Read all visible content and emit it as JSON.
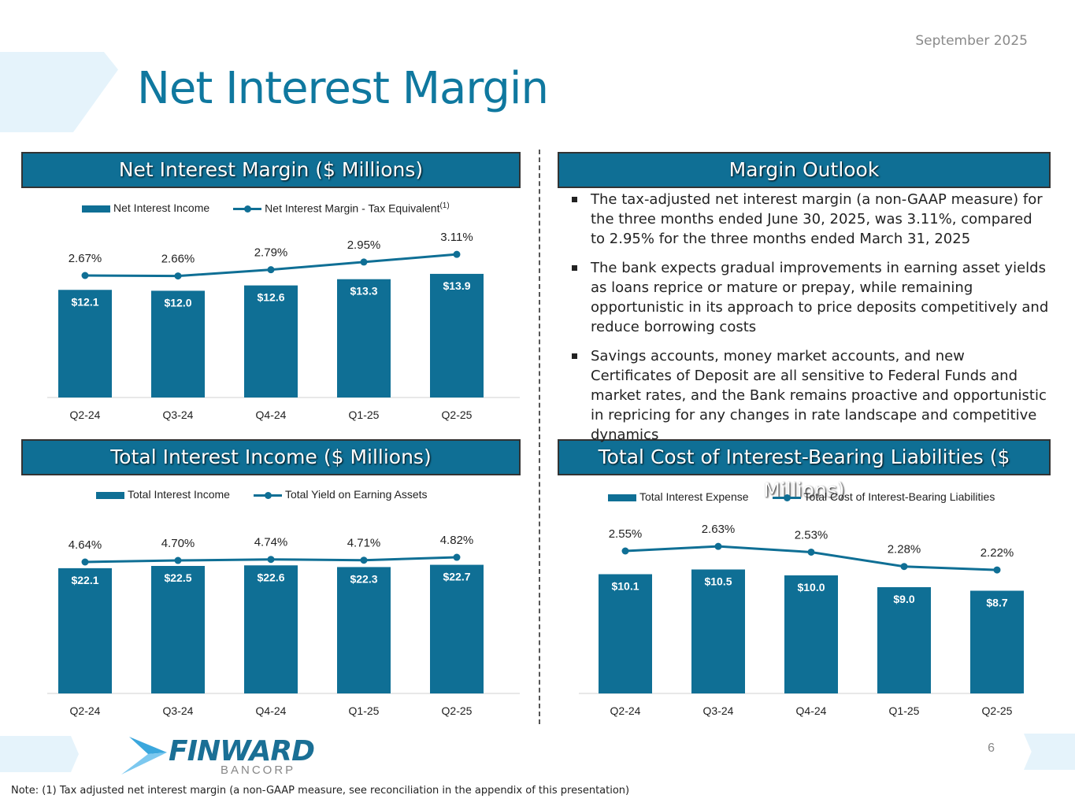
{
  "header": {
    "title": "Net Interest Margin",
    "date": "September 2025"
  },
  "panels": {
    "nim_title": "Net Interest Margin ($ Millions)",
    "outlook_title": "Margin Outlook",
    "tii_title": "Total Interest Income ($ Millions)",
    "cost_title": "Total Cost of Interest-Bearing Liabilities ($ Millions)"
  },
  "outlook": {
    "bullets": [
      "The tax-adjusted net interest margin (a non-GAAP measure) for the three months ended June 30, 2025, was 3.11%, compared to 2.95% for the three months ended March 31, 2025",
      "The bank expects gradual improvements in earning asset yields as loans reprice or mature or prepay, while remaining opportunistic in its approach to price deposits competitively and reduce borrowing costs",
      "Savings accounts, money market accounts, and new Certificates of Deposit are all sensitive to Federal Funds and market rates, and the Bank remains proactive and opportunistic in repricing for any changes in rate landscape and competitive dynamics"
    ]
  },
  "colors": {
    "brand": "#0f6f95",
    "title": "#0f789f",
    "chevron": "#e5f3fb"
  },
  "logo": {
    "name": "FINWARD",
    "sub": "BANCORP"
  },
  "footer": {
    "note": "Note:  (1) Tax adjusted net interest margin (a non-GAAP measure, see reconciliation in the appendix of this presentation)",
    "page": "6"
  },
  "chart_data": [
    {
      "type": "bar+line",
      "categories": [
        "Q2-24",
        "Q3-24",
        "Q4-24",
        "Q1-25",
        "Q2-25"
      ],
      "bar_series": {
        "name": "Net Interest Income",
        "values": [
          12.1,
          12.0,
          12.6,
          13.3,
          13.9
        ],
        "labels": [
          "$12.1",
          "$12.0",
          "$12.6",
          "$13.3",
          "$13.9"
        ]
      },
      "line_series": {
        "name": "Net Interest Margin - Tax Equivalent",
        "footnote": "(1)",
        "values": [
          2.67,
          2.66,
          2.79,
          2.95,
          3.11
        ],
        "labels": [
          "2.67%",
          "2.66%",
          "2.79%",
          "2.95%",
          "3.11%"
        ]
      },
      "legend": "top"
    },
    {
      "type": "bar+line",
      "categories": [
        "Q2-24",
        "Q3-24",
        "Q4-24",
        "Q1-25",
        "Q2-25"
      ],
      "bar_series": {
        "name": "Total Interest Income",
        "values": [
          22.1,
          22.5,
          22.6,
          22.3,
          22.7
        ],
        "labels": [
          "$22.1",
          "$22.5",
          "$22.6",
          "$22.3",
          "$22.7"
        ]
      },
      "line_series": {
        "name": "Total Yield on Earning Assets",
        "values": [
          4.64,
          4.7,
          4.74,
          4.71,
          4.82
        ],
        "labels": [
          "4.64%",
          "4.70%",
          "4.74%",
          "4.71%",
          "4.82%"
        ]
      },
      "legend": "top"
    },
    {
      "type": "bar+line",
      "categories": [
        "Q2-24",
        "Q3-24",
        "Q4-24",
        "Q1-25",
        "Q2-25"
      ],
      "bar_series": {
        "name": "Total Interest Expense",
        "values": [
          10.1,
          10.5,
          10.0,
          9.0,
          8.7
        ],
        "labels": [
          "$10.1",
          "$10.5",
          "$10.0",
          "$9.0",
          "$8.7"
        ]
      },
      "line_series": {
        "name": "Total Cost of Interest-Bearing Liabilities",
        "values": [
          2.55,
          2.63,
          2.53,
          2.28,
          2.22
        ],
        "labels": [
          "2.55%",
          "2.63%",
          "2.53%",
          "2.28%",
          "2.22%"
        ]
      },
      "legend": "top"
    }
  ]
}
